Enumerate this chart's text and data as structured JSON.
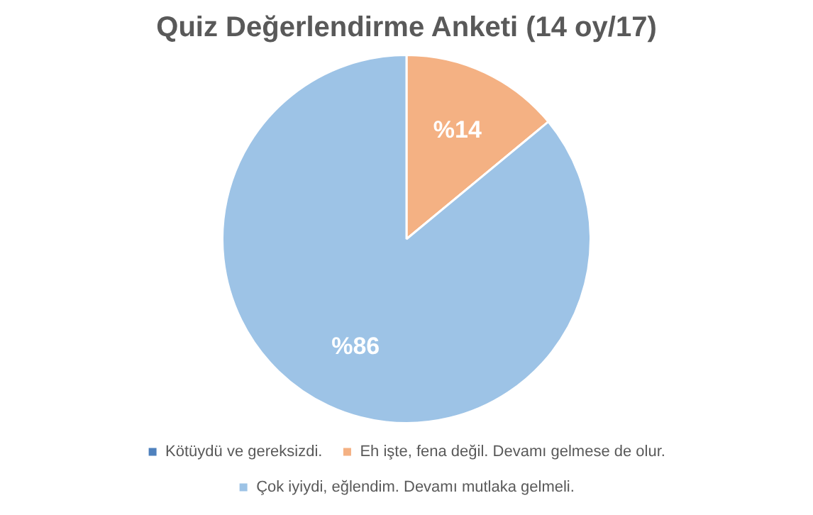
{
  "chart_data": {
    "type": "pie",
    "title": "Quiz Değerlendirme Anketi (14 oy/17)",
    "categories": [
      "Kötüydü ve gereksizdi.",
      "Eh işte, fena değil. Devamı gelmese de olur.",
      "Çok iyiydi, eğlendim. Devamı mutlaka gelmeli."
    ],
    "values": [
      0,
      14,
      86
    ],
    "colors": [
      "#4f81bd",
      "#f4b183",
      "#9dc3e6"
    ],
    "value_labels": [
      null,
      "%14",
      "%86"
    ],
    "legend": "bottom"
  }
}
